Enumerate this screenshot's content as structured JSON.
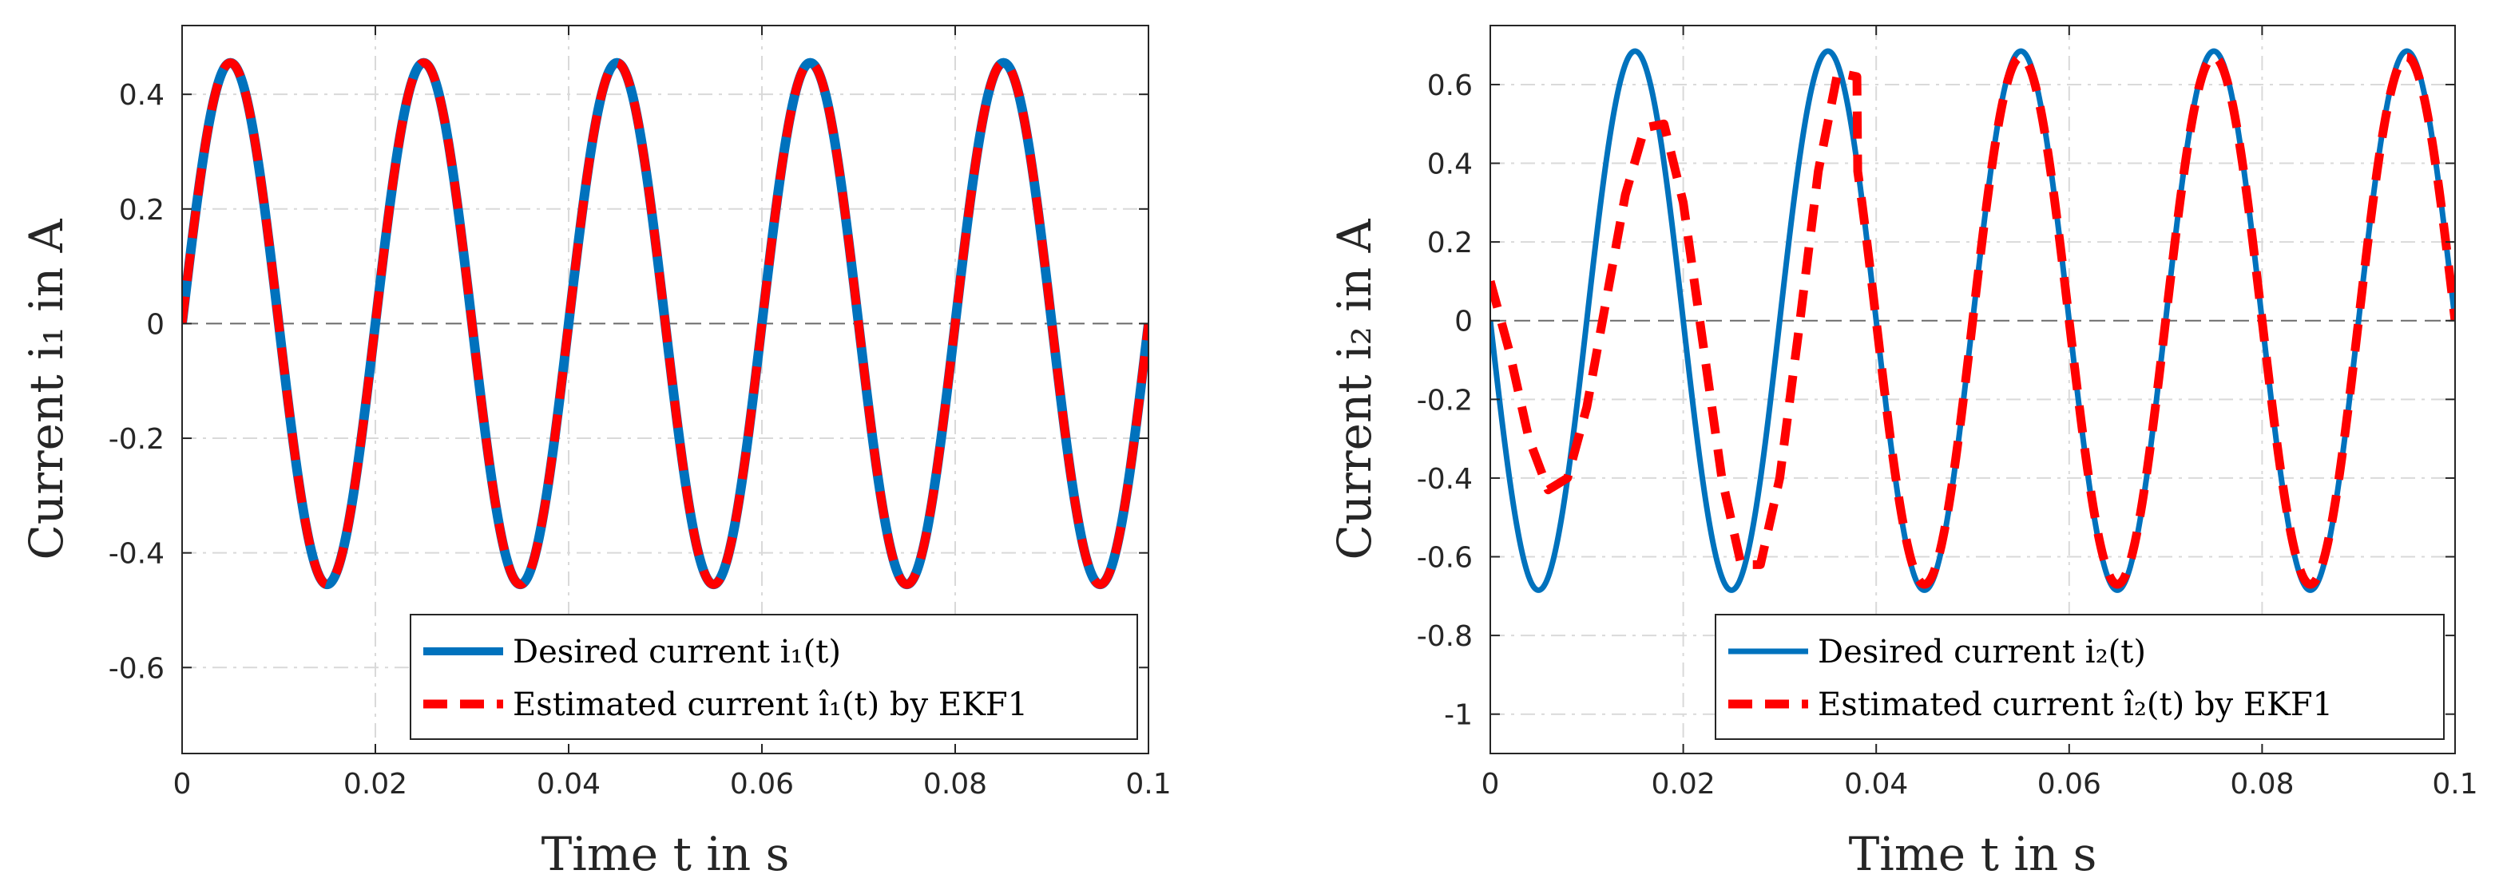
{
  "chart_data": [
    {
      "type": "line",
      "title": "",
      "xlabel": "Time t in s",
      "ylabel": "Current i₁ in A",
      "xlim": [
        0,
        0.1
      ],
      "ylim": [
        -0.75,
        0.52
      ],
      "xticks": [
        0,
        0.02,
        0.04,
        0.06,
        0.08,
        0.1
      ],
      "xtick_labels": [
        "0",
        "0.02",
        "0.04",
        "0.06",
        "0.08",
        "0.1"
      ],
      "yticks": [
        -0.6,
        -0.4,
        -0.2,
        0,
        0.2,
        0.4
      ],
      "ytick_labels": [
        "-0.6",
        "-0.4",
        "-0.2",
        "0",
        "0.2",
        "0.4"
      ],
      "grid": true,
      "legend_position": "bottom-right",
      "series": [
        {
          "name": "Desired current i₁(t)",
          "color": "#0072BD",
          "style": "solid",
          "model": {
            "amplitude": 0.455,
            "frequency_hz": 50,
            "phase_deg": 0
          }
        },
        {
          "name": "Estimated current î₁(t) by EKF1",
          "color": "#FF0000",
          "style": "dashed",
          "model": {
            "amplitude": 0.455,
            "frequency_hz": 50,
            "phase_deg": 0
          }
        }
      ]
    },
    {
      "type": "line",
      "title": "",
      "xlabel": "Time t in s",
      "ylabel": "Current i₂ in A",
      "xlim": [
        0,
        0.1
      ],
      "ylim": [
        -1.1,
        0.75
      ],
      "xticks": [
        0,
        0.02,
        0.04,
        0.06,
        0.08,
        0.1
      ],
      "xtick_labels": [
        "0",
        "0.02",
        "0.04",
        "0.06",
        "0.08",
        "0.1"
      ],
      "yticks": [
        -1,
        -0.8,
        -0.6,
        -0.4,
        -0.2,
        0,
        0.2,
        0.4,
        0.6
      ],
      "ytick_labels": [
        "-1",
        "-0.8",
        "-0.6",
        "-0.4",
        "-0.2",
        "0",
        "0.2",
        "0.4",
        "0.6"
      ],
      "grid": true,
      "legend_position": "bottom-right",
      "series": [
        {
          "name": "Desired current i₂(t)",
          "color": "#0072BD",
          "style": "solid",
          "model": {
            "amplitude": 0.685,
            "frequency_hz": 50,
            "phase_deg": 180
          }
        },
        {
          "name": "Estimated current î₂(t) by EKF1",
          "color": "#FF0000",
          "style": "dashed",
          "points": [
            [
              0.0,
              0.1
            ],
            [
              0.002,
              -0.08
            ],
            [
              0.004,
              -0.3
            ],
            [
              0.006,
              -0.43
            ],
            [
              0.008,
              -0.4
            ],
            [
              0.01,
              -0.22
            ],
            [
              0.012,
              0.05
            ],
            [
              0.014,
              0.32
            ],
            [
              0.016,
              0.49
            ],
            [
              0.018,
              0.5
            ],
            [
              0.02,
              0.3
            ],
            [
              0.022,
              -0.05
            ],
            [
              0.024,
              -0.4
            ],
            [
              0.026,
              -0.62
            ],
            [
              0.028,
              -0.62
            ],
            [
              0.03,
              -0.4
            ],
            [
              0.032,
              -0.02
            ],
            [
              0.034,
              0.38
            ],
            [
              0.036,
              0.63
            ],
            [
              0.038,
              0.62
            ]
          ],
          "model_after_t": 0.038,
          "model": {
            "amplitude": 0.67,
            "frequency_hz": 50,
            "phase_deg": 180
          }
        }
      ]
    }
  ]
}
